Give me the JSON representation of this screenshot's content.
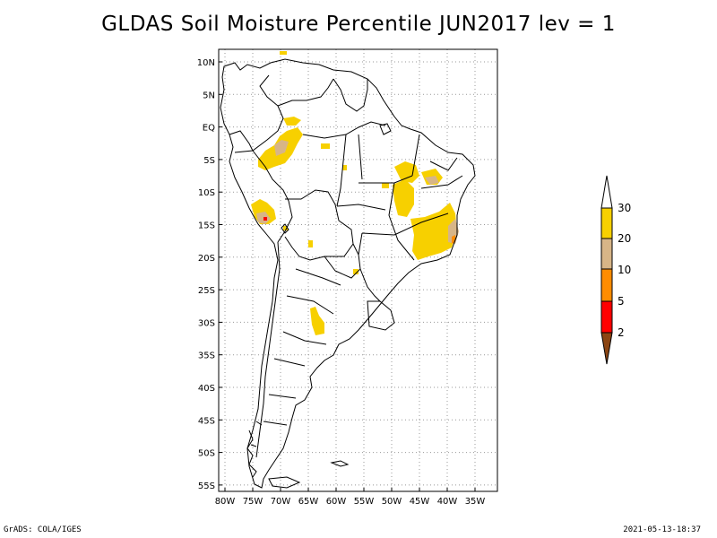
{
  "title": "GLDAS Soil Moisture Percentile JUN2017 lev = 1",
  "footer": {
    "left": "GrADS: COLA/IGES",
    "right": "2021-05-13-18:37"
  },
  "map": {
    "lat_labels": [
      "10N",
      "5N",
      "EQ",
      "5S",
      "10S",
      "15S",
      "20S",
      "25S",
      "30S",
      "35S",
      "40S",
      "45S",
      "50S",
      "55S"
    ],
    "lon_labels": [
      "80W",
      "75W",
      "70W",
      "65W",
      "60W",
      "55W",
      "50W",
      "45W",
      "40W",
      "35W"
    ],
    "lat_range": [
      -56,
      12
    ],
    "lon_range": [
      -81,
      -32
    ],
    "grid": true
  },
  "legend": {
    "labels": [
      "30",
      "20",
      "10",
      "5",
      "2"
    ],
    "colors": [
      "#ffffff",
      "#f7d000",
      "#d7b587",
      "#ff8c00",
      "#ff0000",
      "#8b4513"
    ],
    "color_names": [
      "above 30",
      "20-30",
      "10-20",
      "5-10",
      "2-5",
      "below 2"
    ]
  },
  "colors": {
    "pct_20_30": "#f7d000",
    "pct_10_20": "#d7b587",
    "pct_5_10": "#ff8c00",
    "pct_2_5": "#ff0000",
    "pct_below_2": "#8b4513"
  }
}
